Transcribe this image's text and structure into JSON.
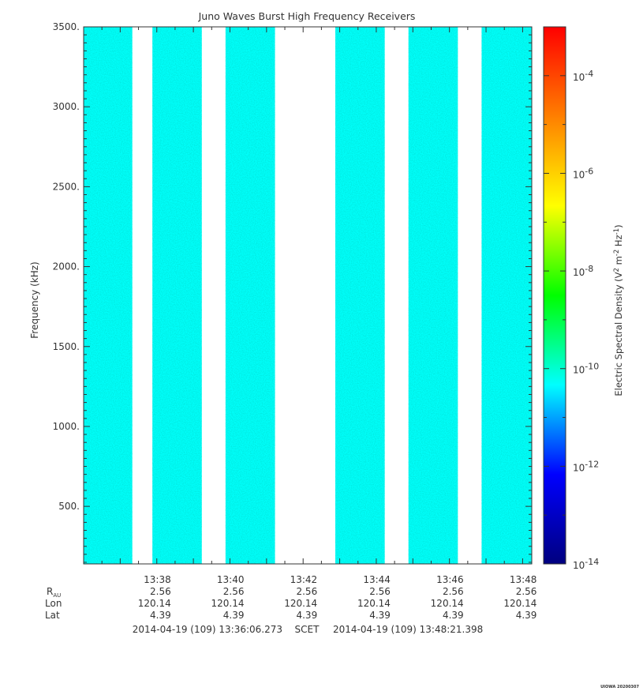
{
  "chart_data": {
    "type": "heatmap",
    "title": "Juno Waves Burst High Frequency Receivers",
    "ylabel": "Frequency (kHz)",
    "ylim": [
      140,
      3500
    ],
    "y_ticks": [
      {
        "value": 500,
        "label": "500."
      },
      {
        "value": 1000,
        "label": "1000."
      },
      {
        "value": 1500,
        "label": "1500."
      },
      {
        "value": 2000,
        "label": "2000."
      },
      {
        "value": 2500,
        "label": "2500."
      },
      {
        "value": 3000,
        "label": "3000."
      },
      {
        "value": 3500,
        "label": "3500."
      }
    ],
    "xlim_minutes": [
      0,
      12.25
    ],
    "x_ticks": [
      {
        "minute": 2,
        "label": "13:38"
      },
      {
        "minute": 4,
        "label": "13:40"
      },
      {
        "minute": 6,
        "label": "13:42"
      },
      {
        "minute": 8,
        "label": "13:44"
      },
      {
        "minute": 10,
        "label": "13:46"
      },
      {
        "minute": 12,
        "label": "13:48"
      }
    ],
    "ephemeris": {
      "row_labels": [
        "R",
        "Lon",
        "Lat"
      ],
      "r_subscript": "AU",
      "values": [
        [
          "2.56",
          "120.14",
          "4.39"
        ],
        [
          "2.56",
          "120.14",
          "4.39"
        ],
        [
          "2.56",
          "120.14",
          "4.39"
        ],
        [
          "2.56",
          "120.14",
          "4.39"
        ],
        [
          "2.56",
          "120.14",
          "4.39"
        ],
        [
          "2.56",
          "120.14",
          "4.39"
        ]
      ]
    },
    "time_range": {
      "start": "2014-04-19 (109) 13:36:06.273",
      "label": "SCET",
      "end": "2014-04-19 (109) 13:48:21.398"
    },
    "data_blocks_minutes": [
      [
        0,
        1.33
      ],
      [
        1.88,
        3.23
      ],
      [
        3.88,
        5.23
      ],
      [
        6.88,
        8.23
      ],
      [
        8.88,
        10.23
      ],
      [
        10.88,
        12.25
      ]
    ],
    "spectral_profile": [
      {
        "freq": 140,
        "log_density": -10.3
      },
      {
        "freq": 300,
        "log_density": -10.0
      },
      {
        "freq": 500,
        "log_density": -10.2
      },
      {
        "freq": 700,
        "log_density": -9.6
      },
      {
        "freq": 850,
        "log_density": -9.9
      },
      {
        "freq": 1000,
        "log_density": -10.55
      },
      {
        "freq": 1150,
        "log_density": -10.5
      },
      {
        "freq": 1300,
        "log_density": -10.0
      },
      {
        "freq": 1600,
        "log_density": -9.9
      },
      {
        "freq": 2000,
        "log_density": -10.15
      },
      {
        "freq": 2500,
        "log_density": -10.1
      },
      {
        "freq": 3000,
        "log_density": -10.25
      },
      {
        "freq": 3500,
        "log_density": -10.2
      }
    ],
    "colorbar": {
      "label": "Electric Spectral Density (V",
      "label_sup1": "2",
      "label_mid": " m",
      "label_sup2": "-2",
      "label_mid2": " Hz",
      "label_sup3": "-1",
      "label_end": ")",
      "range_log": [
        -14,
        -3
      ],
      "colormap": [
        "#00007f",
        "#0000ff",
        "#00ffff",
        "#00ff00",
        "#ffff00",
        "#ff7f00",
        "#ff0000"
      ],
      "ticks": [
        {
          "exp": "-14",
          "base": "10"
        },
        {
          "exp": "-12",
          "base": "10"
        },
        {
          "exp": "-10",
          "base": "10"
        },
        {
          "exp": "-8",
          "base": "10"
        },
        {
          "exp": "-6",
          "base": "10"
        },
        {
          "exp": "-4",
          "base": "10"
        }
      ]
    },
    "footer_mark": "UIOWA 20200307"
  }
}
